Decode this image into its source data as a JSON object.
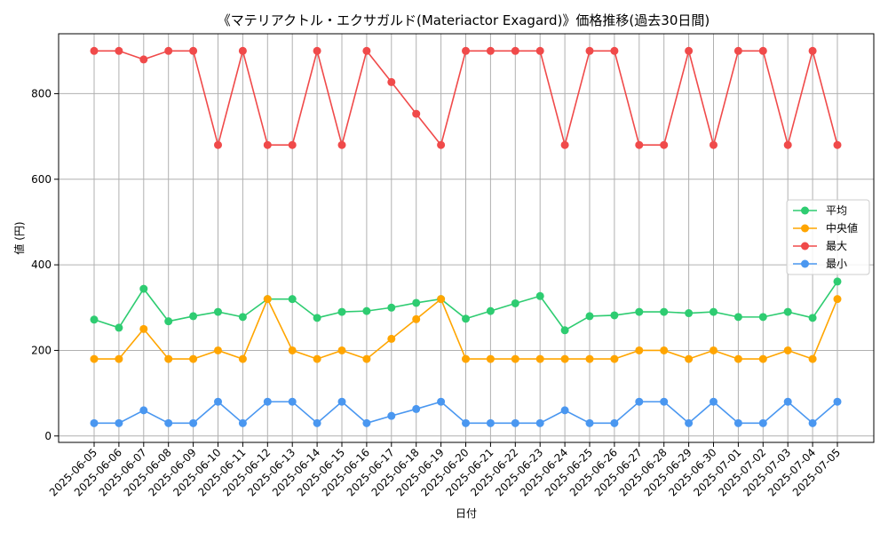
{
  "chart_data": {
    "type": "line",
    "title": "《マテリアクトル・エクサガルド(Materiactor Exagard)》価格推移(過去30日間)",
    "xlabel": "日付",
    "ylabel": "値 (円)",
    "ylim": [
      -15,
      940
    ],
    "yticks": [
      0,
      200,
      400,
      600,
      800
    ],
    "grid": true,
    "legend_position": "center-right",
    "categories": [
      "2025-06-05",
      "2025-06-06",
      "2025-06-07",
      "2025-06-08",
      "2025-06-09",
      "2025-06-10",
      "2025-06-11",
      "2025-06-12",
      "2025-06-13",
      "2025-06-14",
      "2025-06-15",
      "2025-06-16",
      "2025-06-17",
      "2025-06-18",
      "2025-06-19",
      "2025-06-20",
      "2025-06-21",
      "2025-06-22",
      "2025-06-23",
      "2025-06-24",
      "2025-06-25",
      "2025-06-26",
      "2025-06-27",
      "2025-06-28",
      "2025-06-29",
      "2025-06-30",
      "2025-07-01",
      "2025-07-02",
      "2025-07-03",
      "2025-07-04",
      "2025-07-05"
    ],
    "series": [
      {
        "name": "平均",
        "color": "#2ecc71",
        "values": [
          272,
          253,
          344,
          268,
          280,
          290,
          278,
          320,
          320,
          276,
          290,
          292,
          300,
          311,
          320,
          274,
          292,
          310,
          327,
          247,
          280,
          282,
          290,
          290,
          287,
          290,
          278,
          278,
          290,
          276,
          361
        ]
      },
      {
        "name": "中央値",
        "color": "#ffa500",
        "values": [
          180,
          180,
          250,
          180,
          180,
          200,
          180,
          320,
          200,
          180,
          200,
          180,
          227,
          273,
          320,
          180,
          180,
          180,
          180,
          180,
          180,
          180,
          200,
          200,
          180,
          200,
          180,
          180,
          200,
          180,
          320
        ]
      },
      {
        "name": "最大",
        "color": "#f04a4a",
        "values": [
          900,
          900,
          880,
          900,
          900,
          680,
          900,
          680,
          680,
          900,
          680,
          900,
          827,
          753,
          680,
          900,
          900,
          900,
          900,
          680,
          900,
          900,
          680,
          680,
          900,
          680,
          900,
          900,
          680,
          900,
          680
        ]
      },
      {
        "name": "最小",
        "color": "#4a97f0",
        "values": [
          30,
          30,
          60,
          30,
          30,
          80,
          30,
          80,
          80,
          30,
          80,
          30,
          47,
          63,
          80,
          30,
          30,
          30,
          30,
          60,
          30,
          30,
          80,
          80,
          30,
          80,
          30,
          30,
          80,
          30,
          80
        ]
      }
    ]
  }
}
